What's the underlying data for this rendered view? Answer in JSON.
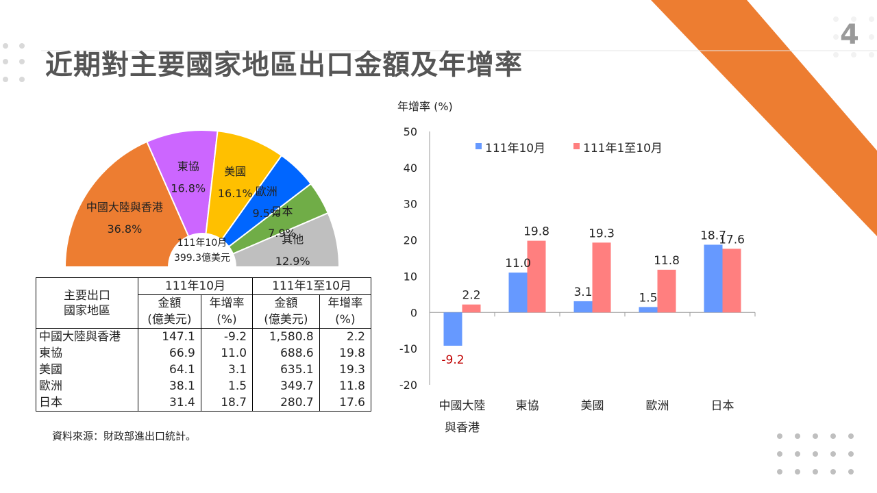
{
  "slide": {
    "title": "近期對主要國家地區出口金額及年增率",
    "page_number": "4",
    "source": "資料來源：財政部進出口統計。",
    "accent_color": "#ED7D31"
  },
  "chart_data": [
    {
      "type": "pie",
      "subtype": "semicircle-donut",
      "center_label_1": "111年10月",
      "center_label_2": "399.3億美元",
      "slices": [
        {
          "label": "中國大陸與香港",
          "pct": "36.8%",
          "value": 36.8,
          "color": "#ED7D31"
        },
        {
          "label": "東協",
          "pct": "16.8%",
          "value": 16.8,
          "color": "#CC66FF"
        },
        {
          "label": "美國",
          "pct": "16.1%",
          "value": 16.1,
          "color": "#FFC000"
        },
        {
          "label": "歐洲",
          "pct": "9.5%",
          "value": 9.5,
          "color": "#0066FF"
        },
        {
          "label": "日本",
          "pct": "7.9%",
          "value": 7.9,
          "color": "#70AD47"
        },
        {
          "label": "其他",
          "pct": "12.9%",
          "value": 12.9,
          "color": "#BFBFBF"
        }
      ]
    },
    {
      "type": "bar",
      "ylabel": "年增率 (%)",
      "ylim": [
        -20,
        50
      ],
      "yticks": [
        -20,
        -10,
        0,
        10,
        20,
        30,
        40,
        50
      ],
      "categories": [
        [
          "中國大陸",
          "與香港"
        ],
        [
          "東協"
        ],
        [
          "美國"
        ],
        [
          "歐洲"
        ],
        [
          "日本"
        ]
      ],
      "series": [
        {
          "name": "111年10月",
          "color": "#6699FF",
          "values": [
            -9.2,
            11.0,
            3.1,
            1.5,
            18.7
          ],
          "labels": [
            "-9.2",
            "11.0",
            "3.1",
            "1.5",
            "18.7"
          ]
        },
        {
          "name": "111年1至10月",
          "color": "#FF7F7F",
          "values": [
            2.2,
            19.8,
            19.3,
            11.8,
            17.6
          ],
          "labels": [
            "2.2",
            "19.8",
            "19.3",
            "11.8",
            "17.6"
          ]
        }
      ],
      "negative_label_color": "#C00000",
      "legend": "top"
    }
  ],
  "table": {
    "corner_header": [
      "主要出口",
      "國家地區"
    ],
    "period_1": "111年10月",
    "period_2": "111年1至10月",
    "amount_header": [
      "金額",
      "(億美元)"
    ],
    "growth_header": [
      "年增率",
      "(%)"
    ],
    "rows": [
      {
        "region": "中國大陸與香港",
        "amt_1": "147.1",
        "grw_1": "-9.2",
        "amt_2": "1,580.8",
        "grw_2": "2.2"
      },
      {
        "region": "東協",
        "amt_1": "66.9",
        "grw_1": "11.0",
        "amt_2": "688.6",
        "grw_2": "19.8"
      },
      {
        "region": "美國",
        "amt_1": "64.1",
        "grw_1": "3.1",
        "amt_2": "635.1",
        "grw_2": "19.3"
      },
      {
        "region": "歐洲",
        "amt_1": "38.1",
        "grw_1": "1.5",
        "amt_2": "349.7",
        "grw_2": "11.8"
      },
      {
        "region": "日本",
        "amt_1": "31.4",
        "grw_1": "18.7",
        "amt_2": "280.7",
        "grw_2": "17.6"
      }
    ]
  }
}
